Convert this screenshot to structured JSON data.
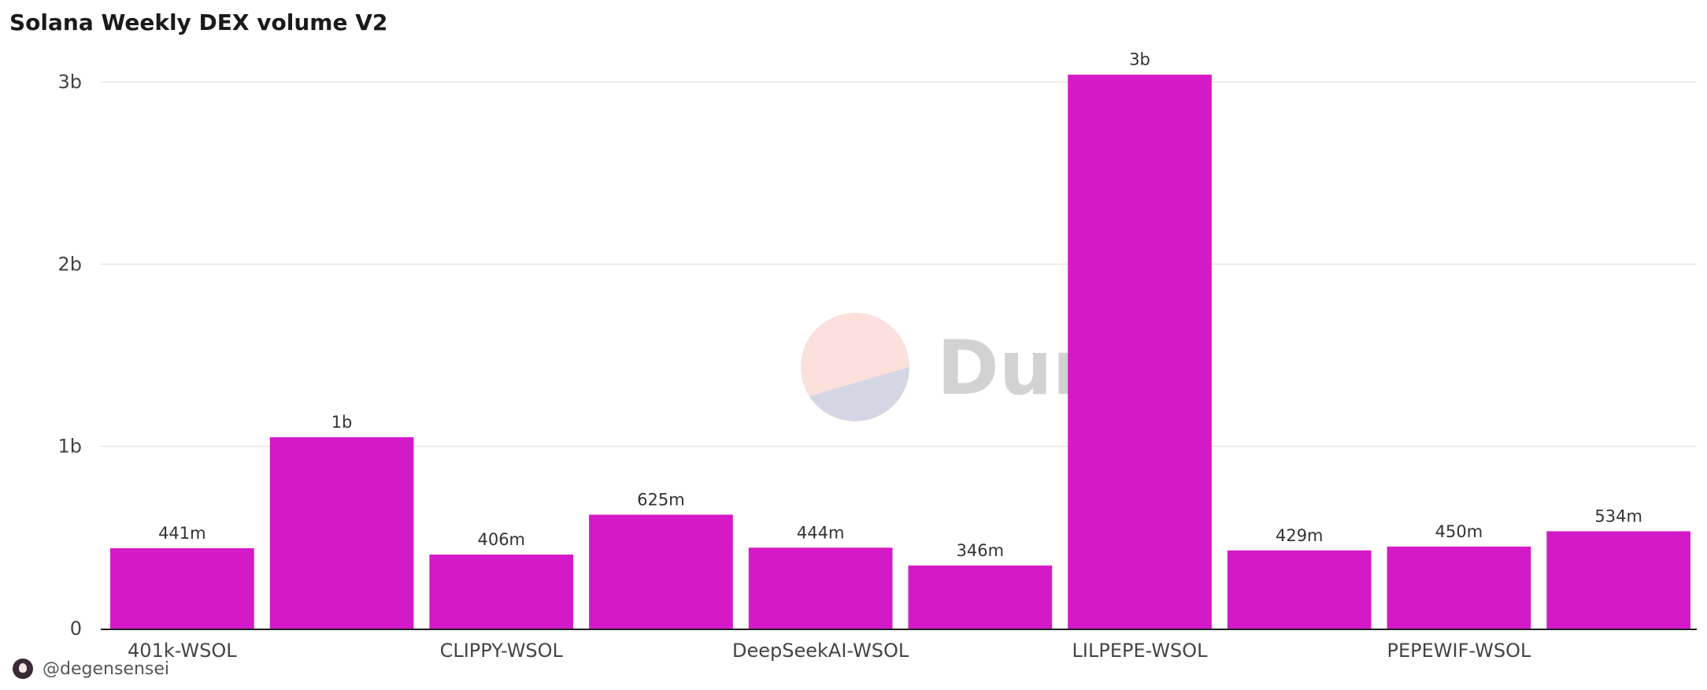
{
  "title": "Solana Weekly DEX volume V2",
  "footer": {
    "author": "@degensensei",
    "avatar_icon": "user-avatar-icon"
  },
  "watermark": {
    "text": "Dune",
    "logo_colors": [
      "#fbe0dc",
      "#d5d6e4"
    ]
  },
  "colors": {
    "bar": "#d41ac8",
    "grid": "#e6e6e6",
    "axis": "#1f1f1f"
  },
  "chart_data": {
    "type": "bar",
    "title": "Solana Weekly DEX volume V2",
    "xlabel": "",
    "ylabel": "",
    "categories": [
      "401k-WSOL",
      "",
      "CLIPPY-WSOL",
      "",
      "DeepSeekAI-WSOL",
      "",
      "LILPEPE-WSOL",
      "",
      "PEPEWIF-WSOL",
      ""
    ],
    "values": [
      441000000,
      1050000000,
      406000000,
      625000000,
      444000000,
      346000000,
      3040000000,
      429000000,
      450000000,
      534000000
    ],
    "data_labels": [
      "441m",
      "1b",
      "406m",
      "625m",
      "444m",
      "346m",
      "3b",
      "429m",
      "450m",
      "534m"
    ],
    "y_ticks": [
      {
        "value": 0,
        "label": "0"
      },
      {
        "value": 1000000000,
        "label": "1b"
      },
      {
        "value": 2000000000,
        "label": "2b"
      },
      {
        "value": 3000000000,
        "label": "3b"
      }
    ],
    "ylim": [
      0,
      3000000000
    ],
    "grid": true,
    "legend": "none"
  }
}
